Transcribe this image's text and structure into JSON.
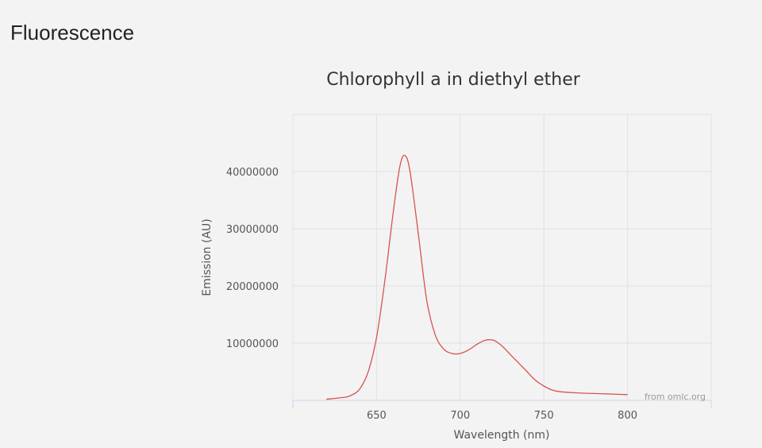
{
  "page": {
    "heading": "Fluorescence"
  },
  "chart_data": {
    "type": "line",
    "title": "Chlorophyll a in diethyl ether",
    "xlabel": "Wavelength (nm)",
    "ylabel": "Emission (AU)",
    "credit": "from omlc.org",
    "xlim": [
      600,
      850
    ],
    "ylim": [
      0,
      50000000
    ],
    "xticks": [
      650,
      700,
      750,
      800
    ],
    "yticks": [
      10000000,
      20000000,
      30000000,
      40000000
    ],
    "grid": true,
    "colors": {
      "line": "#d9534f",
      "grid": "#e2e2e2",
      "axis": "#ccd6eb"
    },
    "series": [
      {
        "x": [
          620,
          630,
          635,
          640,
          645,
          650,
          655,
          660,
          664,
          667,
          670,
          675,
          680,
          685,
          690,
          695,
          700,
          705,
          710,
          715,
          720,
          725,
          730,
          735,
          740,
          745,
          750,
          755,
          760,
          770,
          780,
          790,
          800
        ],
        "y": [
          200000,
          500000,
          900000,
          2000000,
          5000000,
          11000000,
          21000000,
          33000000,
          41000000,
          42800000,
          40000000,
          29000000,
          17500000,
          11500000,
          9000000,
          8200000,
          8200000,
          8800000,
          9800000,
          10500000,
          10500000,
          9500000,
          8000000,
          6500000,
          5000000,
          3500000,
          2500000,
          1800000,
          1500000,
          1300000,
          1200000,
          1100000,
          1000000
        ]
      }
    ]
  }
}
